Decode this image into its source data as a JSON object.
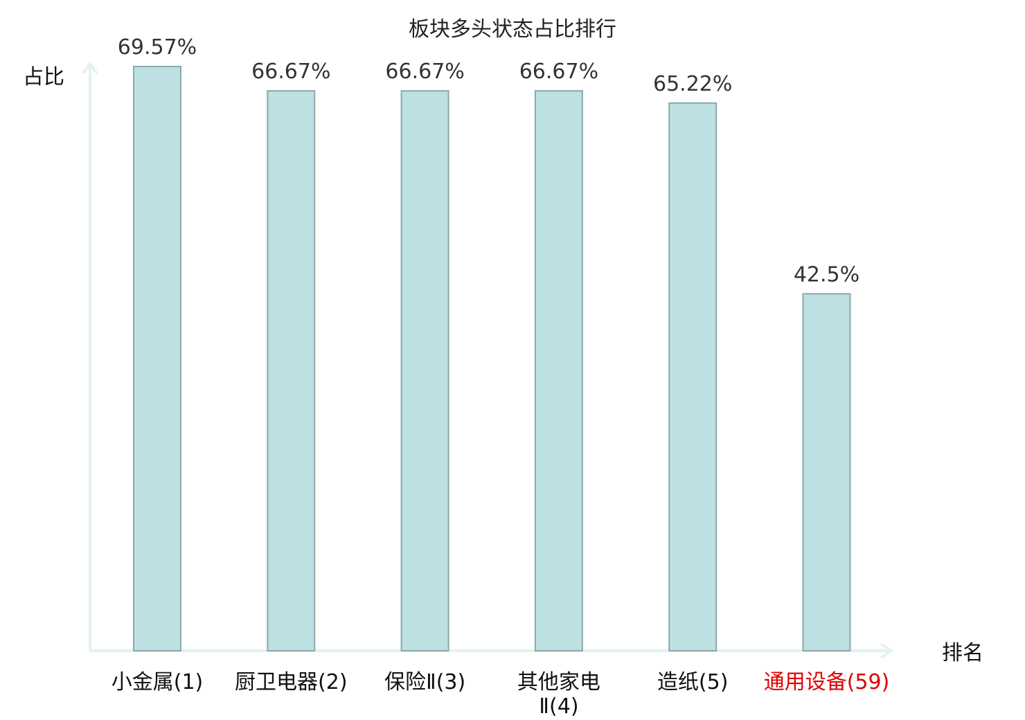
{
  "chart_data": {
    "type": "bar",
    "title": "板块多头状态占比排行",
    "ylabel": "占比",
    "xlabel": "排名",
    "categories": [
      [
        "小金属(1)"
      ],
      [
        "厨卫电器(2)"
      ],
      [
        "保险Ⅱ(3)"
      ],
      [
        "其他家电",
        "Ⅱ(4)"
      ],
      [
        "造纸(5)"
      ],
      [
        "通用设备(59)"
      ]
    ],
    "values": [
      69.57,
      66.67,
      66.67,
      66.67,
      65.22,
      42.5
    ],
    "value_labels": [
      "69.57%",
      "66.67%",
      "66.67%",
      "66.67%",
      "65.22%",
      "42.5%"
    ],
    "highlight_index": 5,
    "ylim": [
      0,
      69.57
    ],
    "grid": false,
    "colors": {
      "bar_fill": "#bde0e3",
      "bar_stroke": "#8aa9aa",
      "axis": "#e2f3f0",
      "highlight_text": "#e00000",
      "label_text": "#111111"
    }
  }
}
